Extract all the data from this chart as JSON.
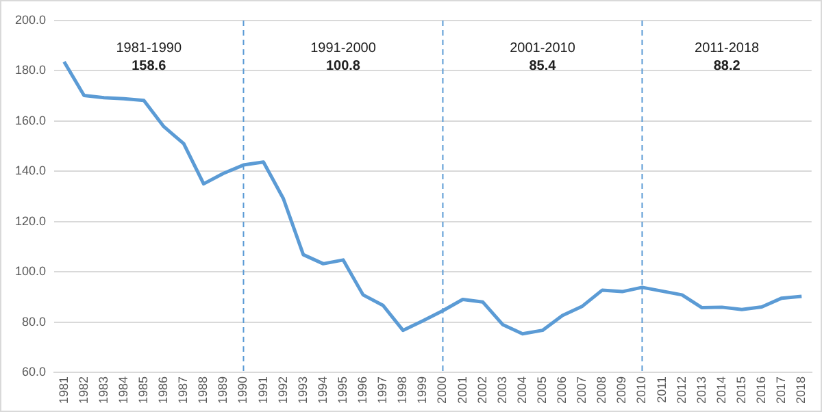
{
  "chart_data": {
    "type": "line",
    "categories": [
      "1981",
      "1982",
      "1983",
      "1984",
      "1985",
      "1986",
      "1987",
      "1988",
      "1989",
      "1990",
      "1991",
      "1992",
      "1993",
      "1994",
      "1995",
      "1996",
      "1997",
      "1998",
      "1999",
      "2000",
      "2001",
      "2002",
      "2003",
      "2004",
      "2005",
      "2006",
      "2007",
      "2008",
      "2009",
      "2010",
      "2011",
      "2012",
      "2013",
      "2014",
      "2015",
      "2016",
      "2017",
      "2018"
    ],
    "series": [
      {
        "color": "#5b9bd5",
        "values": [
          183.6,
          170.2,
          169.3,
          168.9,
          168.2,
          157.8,
          151.0,
          135.0,
          139.2,
          142.5,
          143.7,
          129.1,
          106.8,
          103.2,
          104.7,
          90.8,
          86.6,
          76.7,
          80.5,
          84.5,
          89.0,
          88.0,
          79.0,
          75.3,
          76.7,
          82.6,
          86.3,
          92.7,
          92.1,
          93.8,
          92.3,
          90.8,
          85.7,
          85.9,
          85.0,
          86.0,
          89.5,
          90.2
        ]
      }
    ],
    "ylim": [
      60,
      200
    ],
    "yticks": [
      {
        "value": 60,
        "label": "60.0"
      },
      {
        "value": 80,
        "label": "80.0"
      },
      {
        "value": 100,
        "label": "100.0"
      },
      {
        "value": 120,
        "label": "120.0"
      },
      {
        "value": 140,
        "label": "140.0"
      },
      {
        "value": 160,
        "label": "160.0"
      },
      {
        "value": 180,
        "label": "180.0"
      },
      {
        "value": 200,
        "label": "200.0"
      }
    ],
    "grid": "y",
    "legend": false,
    "marker": "none",
    "line_style": "solid",
    "ref_lines": [
      {
        "axis": "x",
        "value": "1990",
        "color": "#5b9bd5",
        "line_style": "dashed"
      },
      {
        "axis": "x",
        "value": "2000",
        "color": "#5b9bd5",
        "line_style": "dashed"
      },
      {
        "axis": "x",
        "value": "2010",
        "color": "#5b9bd5",
        "line_style": "dashed"
      }
    ],
    "annotations": [
      "1981-1990",
      "158.6",
      "1991-2000",
      "100.8",
      "2001-2010",
      "85.4",
      "2011-2018",
      "88.2"
    ]
  }
}
